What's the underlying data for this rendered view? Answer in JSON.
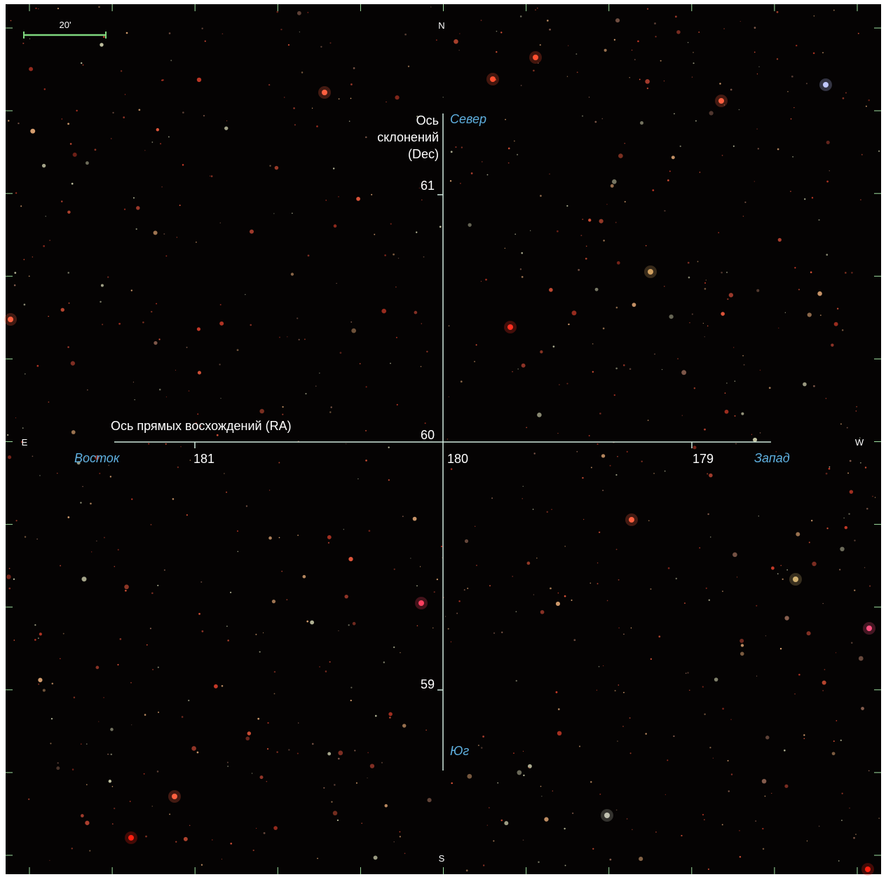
{
  "scale_bar": "20'",
  "compass": {
    "north": "N",
    "south": "S",
    "east": "E",
    "west": "W"
  },
  "dec_axis": {
    "title": [
      "Ось",
      "склонений",
      "(Dec)"
    ],
    "north": "Север",
    "south": "Юг",
    "ticks": [
      "61",
      "60",
      "59"
    ]
  },
  "ra_axis": {
    "title": "Ось прямых восхождений (RA)",
    "east": "Восток",
    "west": "Запад",
    "ticks": [
      "181",
      "180",
      "179"
    ]
  }
}
